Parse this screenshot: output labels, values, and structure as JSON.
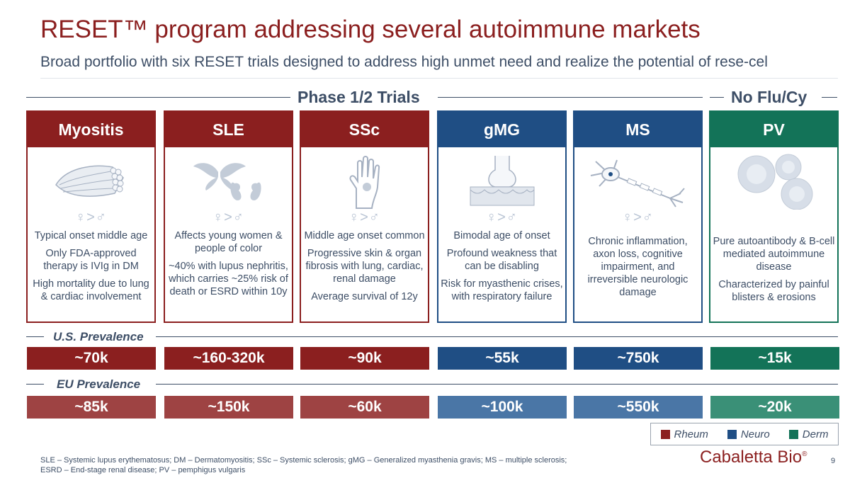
{
  "header": {
    "title": "RESET™ program addressing several autoimmune markets",
    "subtitle": "Broad portfolio with six RESET trials designed to address high unmet need and realize the potential of rese-cel"
  },
  "sections": {
    "phase": "Phase 1/2 Trials",
    "noflu": "No Flu/Cy",
    "us_prevalence": "U.S. Prevalence",
    "eu_prevalence": "EU Prevalence"
  },
  "gender_symbol": "♀>♂",
  "colors": {
    "rheum": "#8b1f1f",
    "neuro": "#1f4e84",
    "derm": "#137358",
    "rheum_light": "#9e4343",
    "neuro_light": "#4a76a6",
    "derm_light": "#3a9077"
  },
  "cards": [
    {
      "name": "Myositis",
      "icon": "muscle-icon",
      "lines": [
        "Typical onset middle age",
        "Only FDA-approved therapy is IVIg in DM",
        "High mortality due to lung & cardiac involvement"
      ],
      "us": "~70k",
      "eu": "~85k"
    },
    {
      "name": "SLE",
      "icon": "butterfly-kidney-icon",
      "lines": [
        "Affects young women & people of color",
        "~40% with lupus nephritis, which carries ~25% risk of death or ESRD within 10y"
      ],
      "us": "~160-320k",
      "eu": "~150k"
    },
    {
      "name": "SSc",
      "icon": "hand-icon",
      "lines": [
        "Middle age onset common",
        "Progressive skin & organ fibrosis with lung, cardiac, renal damage",
        "Average survival of 12y"
      ],
      "us": "~90k",
      "eu": "~60k"
    },
    {
      "name": "gMG",
      "icon": "synapse-icon",
      "lines": [
        "Bimodal age of onset",
        "Profound weakness that can be disabling",
        "Risk for myasthenic crises, with respiratory failure"
      ],
      "us": "~55k",
      "eu": "~100k"
    },
    {
      "name": "MS",
      "icon": "neuron-icon",
      "lines": [
        "Chronic inflammation, axon loss, cognitive impairment, and irreversible neurologic damage"
      ],
      "us": "~750k",
      "eu": "~550k"
    },
    {
      "name": "PV",
      "icon": "cells-icon",
      "lines": [
        "Pure autoantibody & B-cell mediated autoimmune disease",
        "Characterized by painful blisters & erosions"
      ],
      "us": "~15k",
      "eu": "~20k"
    }
  ],
  "legend": {
    "rheum": "Rheum",
    "neuro": "Neuro",
    "derm": "Derm"
  },
  "footnote": {
    "line1": "SLE – Systemic lupus erythematosus; DM – Dermatomyositis; SSc – Systemic sclerosis; gMG – Generalized myasthenia gravis; MS – multiple sclerosis;",
    "line2": "ESRD – End-stage renal disease; PV – pemphigus vulgaris"
  },
  "logo": {
    "text": "Cabaletta Bio",
    "mark": "®"
  },
  "page_number": "9"
}
